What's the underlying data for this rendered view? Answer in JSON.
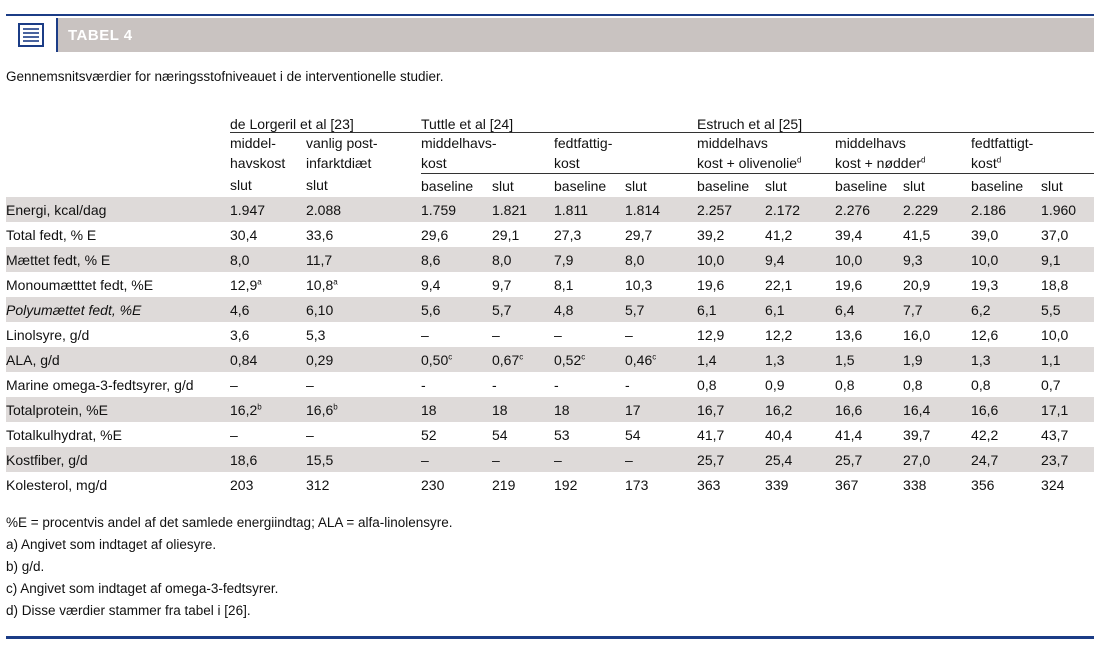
{
  "header": {
    "title": "TABEL 4",
    "icon": "table-icon"
  },
  "caption": "Gennemsnitsværdier for næringsstofniveauet i de interventionelle studier.",
  "studies": {
    "lorgeril": "de Lorgeril et al [23]",
    "tuttle": "Tuttle et al [24]",
    "estruch": "Estruch et al [25]"
  },
  "diets": {
    "lorgeril_1": [
      "middel-",
      "havskost"
    ],
    "lorgeril_2": [
      "vanlig post-",
      "infarktdiæt"
    ],
    "tuttle_1": [
      "middelhavs-",
      "kost"
    ],
    "tuttle_2": [
      "fedtfattig-",
      "kost"
    ],
    "estruch_1": [
      "middelhavs",
      "kost + olivenolie"
    ],
    "estruch_2": [
      "middelhavs",
      "kost + nødder"
    ],
    "estruch_3": [
      "fedtfattigt-",
      "kost"
    ]
  },
  "col_labels": {
    "slut": "slut",
    "baseline": "baseline",
    "sup_d": "d"
  },
  "rows": [
    {
      "label": "Energi, kcal/dag",
      "italic": false,
      "values": [
        [
          "1.947",
          ""
        ],
        [
          "2.088",
          ""
        ],
        [
          "1.759",
          ""
        ],
        [
          "1.821",
          ""
        ],
        [
          "1.811",
          ""
        ],
        [
          "1.814",
          ""
        ],
        [
          "2.257",
          ""
        ],
        [
          "2.172",
          ""
        ],
        [
          "2.276",
          ""
        ],
        [
          "2.229",
          ""
        ],
        [
          "2.186",
          ""
        ],
        [
          "1.960",
          ""
        ]
      ]
    },
    {
      "label": "Total fedt, % E",
      "italic": false,
      "values": [
        [
          "30,4",
          ""
        ],
        [
          "33,6",
          ""
        ],
        [
          "29,6",
          ""
        ],
        [
          "29,1",
          ""
        ],
        [
          "27,3",
          ""
        ],
        [
          "29,7",
          ""
        ],
        [
          "39,2",
          ""
        ],
        [
          "41,2",
          ""
        ],
        [
          "39,4",
          ""
        ],
        [
          "41,5",
          ""
        ],
        [
          "39,0",
          ""
        ],
        [
          "37,0",
          ""
        ]
      ]
    },
    {
      "label": "Mættet fedt, % E",
      "italic": false,
      "values": [
        [
          "8,0",
          ""
        ],
        [
          "11,7",
          ""
        ],
        [
          "8,6",
          ""
        ],
        [
          "8,0",
          ""
        ],
        [
          "7,9",
          ""
        ],
        [
          "8,0",
          ""
        ],
        [
          "10,0",
          ""
        ],
        [
          "9,4",
          ""
        ],
        [
          "10,0",
          ""
        ],
        [
          "9,3",
          ""
        ],
        [
          "10,0",
          ""
        ],
        [
          "9,1",
          ""
        ]
      ]
    },
    {
      "label": "Monoumætttet fedt, %E",
      "italic": false,
      "values": [
        [
          "12,9",
          "a"
        ],
        [
          "10,8",
          "a"
        ],
        [
          "9,4",
          ""
        ],
        [
          "9,7",
          ""
        ],
        [
          "8,1",
          ""
        ],
        [
          "10,3",
          ""
        ],
        [
          "19,6",
          ""
        ],
        [
          "22,1",
          ""
        ],
        [
          "19,6",
          ""
        ],
        [
          "20,9",
          ""
        ],
        [
          "19,3",
          ""
        ],
        [
          "18,8",
          ""
        ]
      ]
    },
    {
      "label": "Polyumættet fedt, %E",
      "italic": true,
      "values": [
        [
          "4,6",
          ""
        ],
        [
          "6,10",
          ""
        ],
        [
          "5,6",
          ""
        ],
        [
          "5,7",
          ""
        ],
        [
          "4,8",
          ""
        ],
        [
          "5,7",
          ""
        ],
        [
          "6,1",
          ""
        ],
        [
          "6,1",
          ""
        ],
        [
          "6,4",
          ""
        ],
        [
          "7,7",
          ""
        ],
        [
          "6,2",
          ""
        ],
        [
          "5,5",
          ""
        ]
      ]
    },
    {
      "label": "Linolsyre, g/d",
      "italic": false,
      "values": [
        [
          "3,6",
          ""
        ],
        [
          "5,3",
          ""
        ],
        [
          "–",
          ""
        ],
        [
          "–",
          ""
        ],
        [
          "–",
          ""
        ],
        [
          "–",
          ""
        ],
        [
          "12,9",
          ""
        ],
        [
          "12,2",
          ""
        ],
        [
          "13,6",
          ""
        ],
        [
          "16,0",
          ""
        ],
        [
          "12,6",
          ""
        ],
        [
          "10,0",
          ""
        ]
      ]
    },
    {
      "label": "ALA, g/d",
      "italic": false,
      "values": [
        [
          "0,84",
          ""
        ],
        [
          "0,29",
          ""
        ],
        [
          "0,50",
          "c"
        ],
        [
          "0,67",
          "c"
        ],
        [
          "0,52",
          "c"
        ],
        [
          "0,46",
          "c"
        ],
        [
          "1,4",
          ""
        ],
        [
          "1,3",
          ""
        ],
        [
          "1,5",
          ""
        ],
        [
          "1,9",
          ""
        ],
        [
          "1,3",
          ""
        ],
        [
          "1,1",
          ""
        ]
      ]
    },
    {
      "label": "Marine omega-3-fedtsyrer, g/d",
      "italic": false,
      "values": [
        [
          "–",
          ""
        ],
        [
          "–",
          ""
        ],
        [
          "-",
          ""
        ],
        [
          "-",
          ""
        ],
        [
          "-",
          ""
        ],
        [
          "-",
          ""
        ],
        [
          "0,8",
          ""
        ],
        [
          "0,9",
          ""
        ],
        [
          "0,8",
          ""
        ],
        [
          "0,8",
          ""
        ],
        [
          "0,8",
          ""
        ],
        [
          "0,7",
          ""
        ]
      ]
    },
    {
      "label": "Totalprotein, %E",
      "italic": false,
      "values": [
        [
          "16,2",
          "b"
        ],
        [
          "16,6",
          "b"
        ],
        [
          "18",
          ""
        ],
        [
          "18",
          ""
        ],
        [
          "18",
          ""
        ],
        [
          "17",
          ""
        ],
        [
          "16,7",
          ""
        ],
        [
          "16,2",
          ""
        ],
        [
          "16,6",
          ""
        ],
        [
          "16,4",
          ""
        ],
        [
          "16,6",
          ""
        ],
        [
          "17,1",
          ""
        ]
      ]
    },
    {
      "label": "Totalkulhydrat, %E",
      "italic": false,
      "values": [
        [
          "–",
          ""
        ],
        [
          "–",
          ""
        ],
        [
          "52",
          ""
        ],
        [
          "54",
          ""
        ],
        [
          "53",
          ""
        ],
        [
          "54",
          ""
        ],
        [
          "41,7",
          ""
        ],
        [
          "40,4",
          ""
        ],
        [
          "41,4",
          ""
        ],
        [
          "39,7",
          ""
        ],
        [
          "42,2",
          ""
        ],
        [
          "43,7",
          ""
        ]
      ]
    },
    {
      "label": "Kostfiber, g/d",
      "italic": false,
      "values": [
        [
          "18,6",
          ""
        ],
        [
          "15,5",
          ""
        ],
        [
          "–",
          ""
        ],
        [
          "–",
          ""
        ],
        [
          "–",
          ""
        ],
        [
          "–",
          ""
        ],
        [
          "25,7",
          ""
        ],
        [
          "25,4",
          ""
        ],
        [
          "25,7",
          ""
        ],
        [
          "27,0",
          ""
        ],
        [
          "24,7",
          ""
        ],
        [
          "23,7",
          ""
        ]
      ]
    },
    {
      "label": "Kolesterol, mg/d",
      "italic": false,
      "values": [
        [
          "203",
          ""
        ],
        [
          "312",
          ""
        ],
        [
          "230",
          ""
        ],
        [
          "219",
          ""
        ],
        [
          "192",
          ""
        ],
        [
          "173",
          ""
        ],
        [
          "363",
          ""
        ],
        [
          "339",
          ""
        ],
        [
          "367",
          ""
        ],
        [
          "338",
          ""
        ],
        [
          "356",
          ""
        ],
        [
          "324",
          ""
        ]
      ]
    }
  ],
  "footnotes": [
    "%E = procentvis andel af det samlede energiindtag; ALA = alfa-linolensyre.",
    "a) Angivet som indtaget af oliesyre.",
    "b) g/d.",
    "c) Angivet som indtaget af omega-3-fedtsyrer.",
    "d) Disse værdier stammer fra tabel i [26]."
  ],
  "colors": {
    "accent": "#1b3c86",
    "header_bg": "#c9c3c1",
    "row_shade": "#dedad9"
  }
}
